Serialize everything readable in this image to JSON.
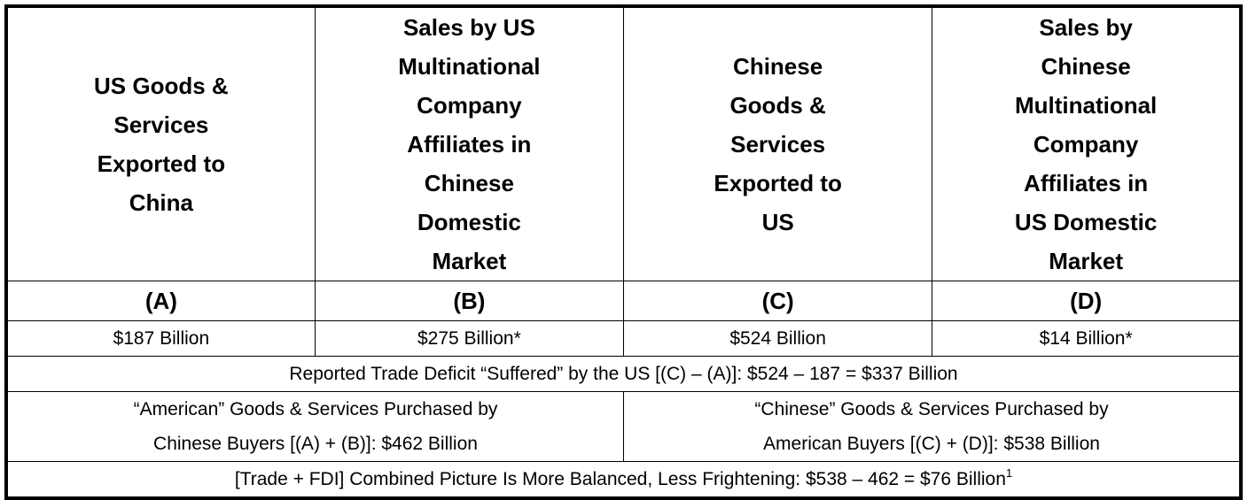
{
  "table": {
    "headers": [
      {
        "lines": [
          "US Goods &",
          "Services",
          "Exported to",
          "China"
        ]
      },
      {
        "lines": [
          "Sales by US",
          "Multinational",
          "Company",
          "Affiliates in",
          "Chinese",
          "Domestic",
          "Market"
        ]
      },
      {
        "lines": [
          "Chinese",
          "Goods &",
          "Services",
          "Exported to",
          "US"
        ]
      },
      {
        "lines": [
          "Sales by",
          "Chinese",
          "Multinational",
          "Company",
          "Affiliates in",
          "US Domestic",
          "Market"
        ]
      }
    ],
    "column_letters": [
      "(A)",
      "(B)",
      "(C)",
      "(D)"
    ],
    "values": [
      "$187 Billion",
      "$275 Billion*",
      "$524 Billion",
      "$14 Billion*"
    ],
    "deficit_row": "Reported Trade Deficit “Suffered” by the US [(C) – (A)]: $524 – 187 = $337 Billion",
    "purchases": [
      {
        "lines": [
          "“American” Goods & Services Purchased by",
          "Chinese Buyers [(A) + (B)]: $462 Billion"
        ]
      },
      {
        "lines": [
          "“Chinese” Goods & Services Purchased by",
          "American Buyers [(C) + (D)]: $538 Billion"
        ]
      }
    ],
    "combined_row": {
      "text": "[Trade + FDI] Combined Picture Is More Balanced, Less Frightening: $538 – 462 = $76 Billion",
      "footnote_marker": "1"
    }
  }
}
